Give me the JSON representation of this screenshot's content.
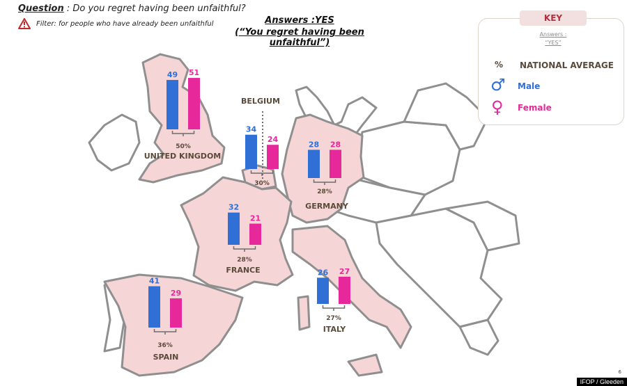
{
  "question": {
    "label": "Question",
    "text": " : Do you regret having been unfaithful?"
  },
  "filter": {
    "text": "Filter: for people who have already been unfaithful"
  },
  "title": {
    "line1": "Answers :YES",
    "line2": "(“You regret having been unfaithful”)"
  },
  "key": {
    "badge": "KEY",
    "sub_line1": "Answers :",
    "sub_line2": "“YES”",
    "percent_symbol": "%",
    "national_average": "NATIONAL AVERAGE",
    "male_symbol": "♂",
    "male": "Male",
    "female_symbol": "♀",
    "female": "Female"
  },
  "colors": {
    "male": "#2f6fd6",
    "female": "#e6289a",
    "highlight": "#f6d5d6"
  },
  "countries": [
    {
      "name": "UNITED KINGDOM",
      "male": 49,
      "female": 51,
      "average": "50%"
    },
    {
      "name": "BELGIUM",
      "male": 34,
      "female": 24,
      "average": "30%"
    },
    {
      "name": "GERMANY",
      "male": 28,
      "female": 28,
      "average": "28%"
    },
    {
      "name": "FRANCE",
      "male": 32,
      "female": 21,
      "average": "28%"
    },
    {
      "name": "SPAIN",
      "male": 41,
      "female": 29,
      "average": "36%"
    },
    {
      "name": "ITALY",
      "male": 26,
      "female": 27,
      "average": "27%"
    }
  ],
  "footer": {
    "source": "IFOP / Gleeden",
    "page": "6"
  }
}
